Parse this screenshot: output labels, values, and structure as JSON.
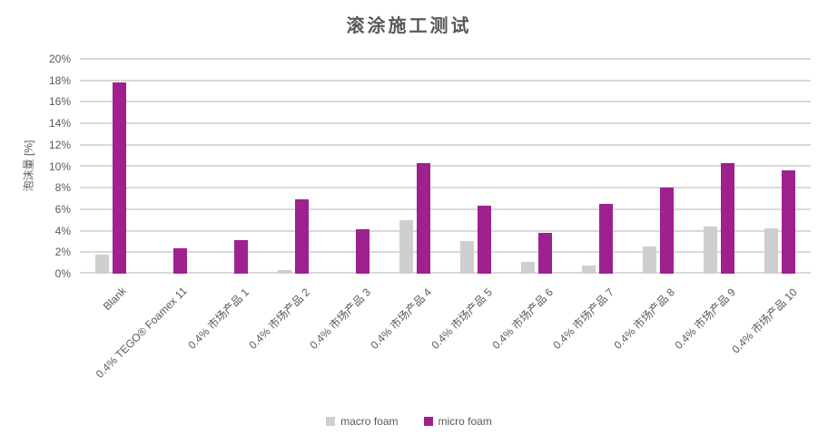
{
  "chart_data": {
    "type": "bar",
    "title": "滚涂施工测试",
    "ylabel": "泡沫量 [%]",
    "xlabel": "",
    "ylim": [
      0,
      20
    ],
    "ytick_step": 2,
    "ytick_suffix": "%",
    "grid": true,
    "legend_position": "bottom",
    "categories": [
      "Blank",
      "0.4% TEGO® Foamex 11",
      "0.4% 市场产品 1",
      "0.4% 市场产品 2",
      "0.4% 市场产品 3",
      "0.4% 市场产品 4",
      "0.4% 市场产品 5",
      "0.4% 市场产品 6",
      "0.4% 市场产品 7",
      "0.4% 市场产品 8",
      "0.4% 市场产品 9",
      "0.4% 市场产品 10"
    ],
    "series": [
      {
        "name": "macro foam",
        "color": "#D0CECE",
        "values": [
          1.8,
          0,
          0,
          0.3,
          0,
          5.0,
          3.0,
          1.1,
          0.8,
          2.5,
          4.4,
          4.2
        ]
      },
      {
        "name": "micro foam",
        "color": "#9E218F",
        "values": [
          17.8,
          2.4,
          3.1,
          6.9,
          4.1,
          10.3,
          6.3,
          3.8,
          6.5,
          8.0,
          10.3,
          9.6
        ]
      }
    ],
    "colors": {
      "text": "#595959",
      "gridline": "#D9D9D9",
      "background": "#FFFFFF"
    }
  }
}
